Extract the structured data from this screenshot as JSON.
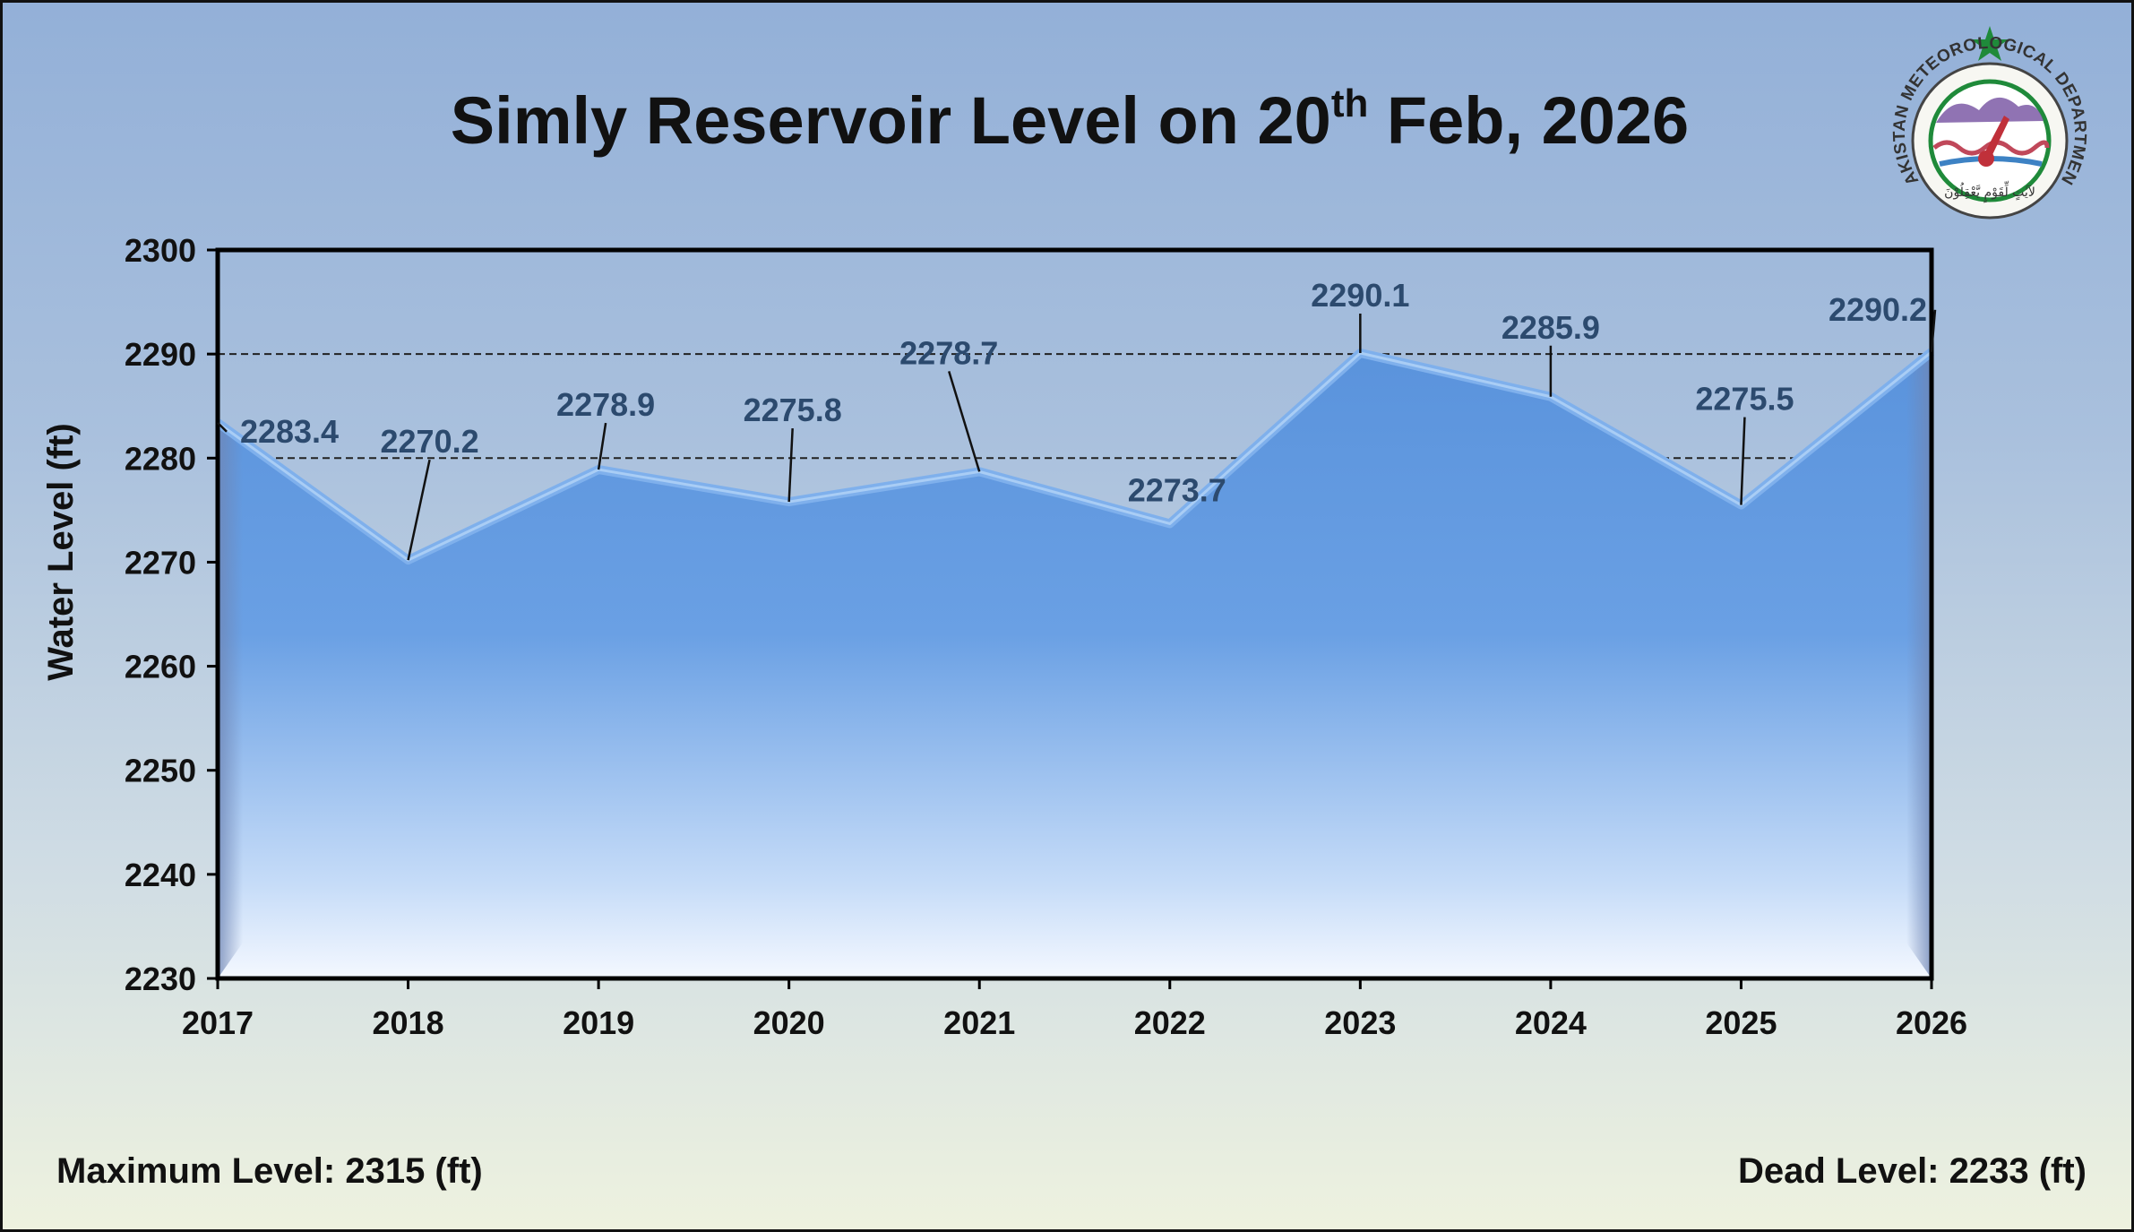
{
  "title": {
    "main": "Simly Reservoir Level on 20",
    "sup": "th",
    "rest": " Feb, 2026"
  },
  "logo": {
    "icon": "pmd-logo-icon",
    "ring_text": "PAKISTAN METEOROLOGICAL DEPARTMENT",
    "urdu_text": "لآيٰتٍ لِّقَوْمٍ يَّعْقِلُوْنَ"
  },
  "footer": {
    "max_level": "Maximum Level: 2315 (ft)",
    "dead_level": "Dead Level: 2233 (ft)"
  },
  "colors": {
    "fill_top": "#5a93dc",
    "fill_bottom": "#eaf2ff",
    "line": "#7fb0ec",
    "label": "#2c4a6e"
  },
  "chart_data": {
    "type": "area",
    "categories": [
      "2017",
      "2018",
      "2019",
      "2020",
      "2021",
      "2022",
      "2023",
      "2024",
      "2025",
      "2026"
    ],
    "values": [
      2283.4,
      2270.2,
      2278.9,
      2275.8,
      2278.7,
      2273.7,
      2290.1,
      2285.9,
      2275.5,
      2290.2
    ],
    "data_labels": [
      "2283.4",
      "2270.2",
      "2278.9",
      "2275.8",
      "2278.7",
      "2273.7",
      "2290.1",
      "2285.9",
      "2275.5",
      "2290.2"
    ],
    "ylabel": "Water Level (ft)",
    "xlabel": "",
    "ylim": [
      2230,
      2300
    ],
    "yticks": [
      "2230",
      "2240",
      "2250",
      "2260",
      "2270",
      "2280",
      "2290",
      "2300"
    ],
    "reference_lines": [
      2280,
      2290
    ],
    "grid": false,
    "legend": "none"
  }
}
